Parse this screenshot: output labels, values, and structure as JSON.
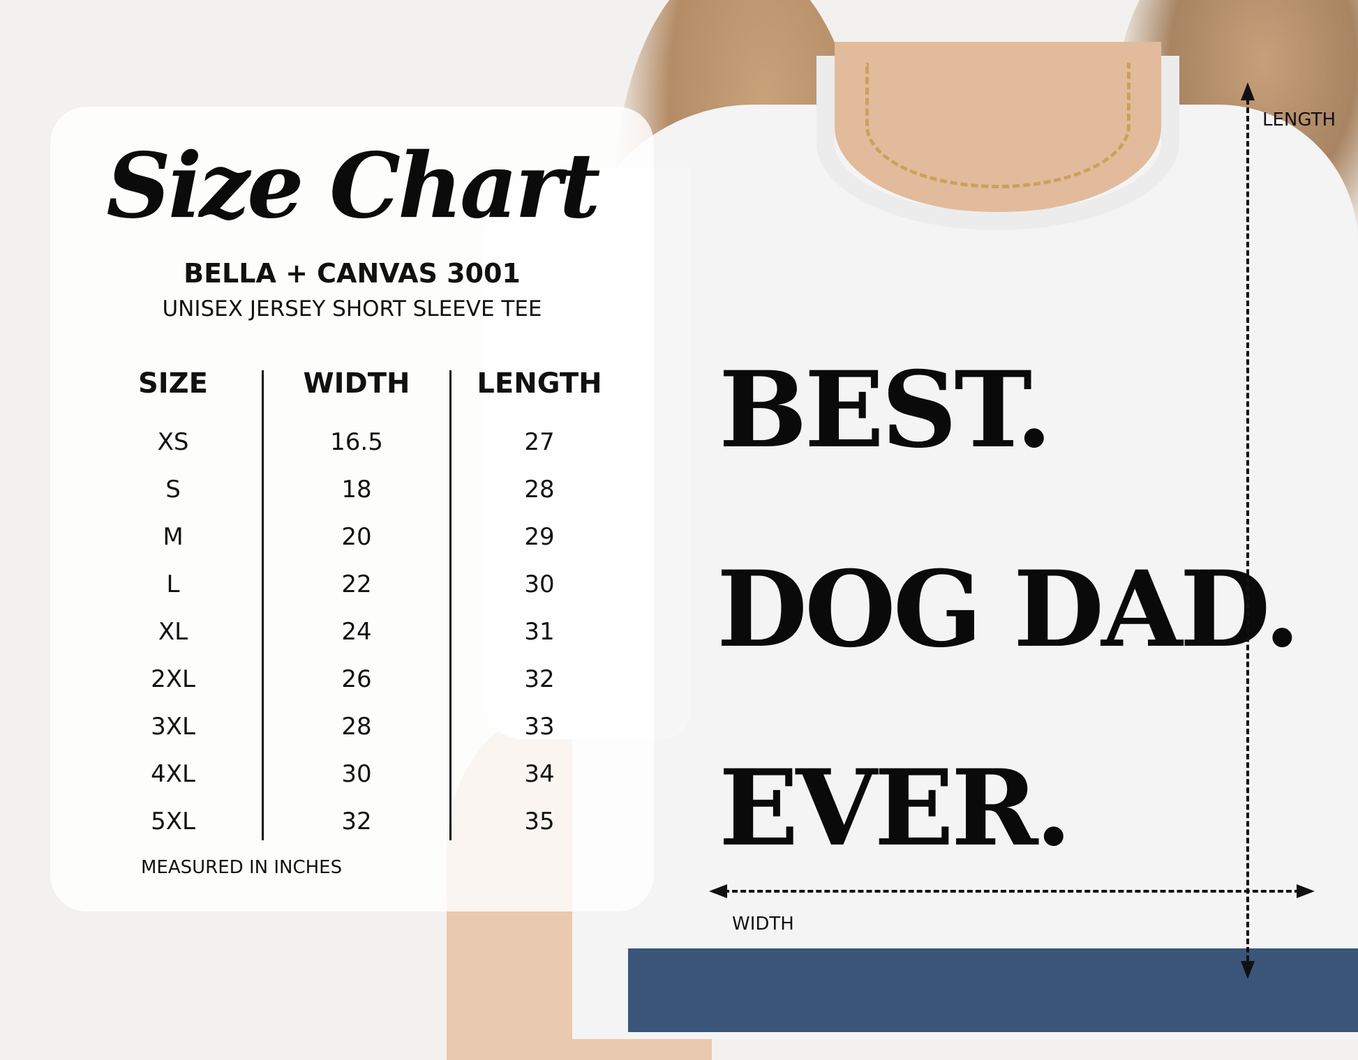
{
  "title": "Size Chart",
  "brand": "BELLA + CANVAS 3001",
  "subtitle": "UNISEX JERSEY SHORT SLEEVE TEE",
  "table": {
    "headers": [
      "SIZE",
      "WIDTH",
      "LENGTH"
    ],
    "rows": [
      [
        "XS",
        "16.5",
        "27"
      ],
      [
        "S",
        "18",
        "28"
      ],
      [
        "M",
        "20",
        "29"
      ],
      [
        "L",
        "22",
        "30"
      ],
      [
        "XL",
        "24",
        "31"
      ],
      [
        "2XL",
        "26",
        "32"
      ],
      [
        "3XL",
        "28",
        "33"
      ],
      [
        "4XL",
        "30",
        "34"
      ],
      [
        "5XL",
        "32",
        "35"
      ]
    ]
  },
  "footnote": "MEASURED IN INCHES",
  "shirt_print": [
    "BEST.",
    "DOG DAD.",
    "EVER."
  ],
  "measure_labels": {
    "length": "LENGTH",
    "width": "WIDTH"
  }
}
